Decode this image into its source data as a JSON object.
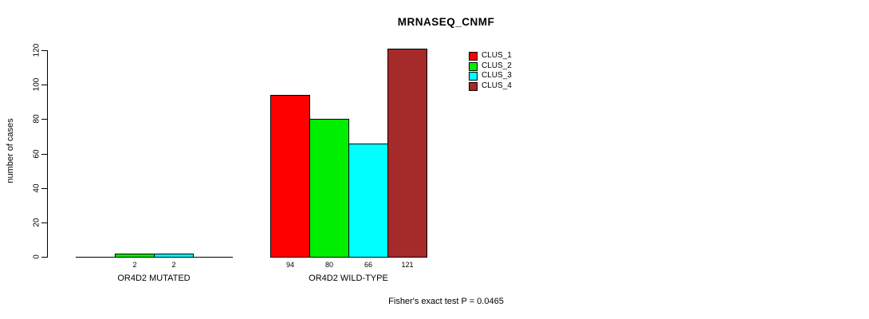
{
  "chart_data": {
    "type": "bar",
    "title": "MRNASEQ_CNMF",
    "ylabel": "number of cases",
    "xlabel": "",
    "ylim": [
      0,
      120
    ],
    "yticks": [
      0,
      20,
      40,
      60,
      80,
      100,
      120
    ],
    "grid": false,
    "legend_position": "top-right",
    "categories": [
      "OR4D2 MUTATED",
      "OR4D2 WILD-TYPE"
    ],
    "series": [
      {
        "name": "CLUS_1",
        "color": "#FF0000",
        "values": [
          0,
          94
        ]
      },
      {
        "name": "CLUS_2",
        "color": "#00EE00",
        "values": [
          2,
          80
        ]
      },
      {
        "name": "CLUS_3",
        "color": "#00FFFF",
        "values": [
          2,
          66
        ]
      },
      {
        "name": "CLUS_4",
        "color": "#A52A2A",
        "values": [
          0,
          121
        ]
      }
    ],
    "bar_value_labels": [
      [
        "",
        "2",
        "2",
        ""
      ],
      [
        "94",
        "80",
        "66",
        "121"
      ]
    ],
    "annotation": "Fisher's exact test P = 0.0465"
  }
}
